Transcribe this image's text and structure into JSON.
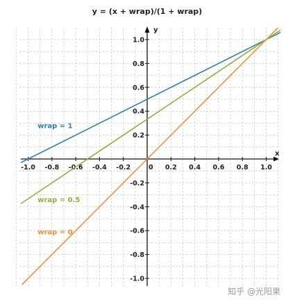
{
  "chart_data": {
    "type": "line",
    "title": "y = (x + wrap)/(1 + wrap)",
    "xlabel": "x",
    "ylabel": "y",
    "xlim": [
      -1.0,
      1.0
    ],
    "ylim": [
      -1.0,
      1.0
    ],
    "grid": true,
    "x_ticks": [
      "-1.0",
      "-0.8",
      "-0.6",
      "-0.4",
      "-0.2",
      "0",
      "0.2",
      "0.4",
      "0.6",
      "0.8",
      "1.0"
    ],
    "y_ticks": [
      "1.0",
      "0.8",
      "0.6",
      "0.4",
      "0.2",
      "-0.2",
      "-0.4",
      "-0.6",
      "-0.8",
      "-1.0"
    ],
    "series": [
      {
        "name": "wrap = 1",
        "wrap": 1,
        "color": "#2f7fb0"
      },
      {
        "name": "wrap = 0.5",
        "wrap": 0.5,
        "color": "#8fb03c"
      },
      {
        "name": "wrap = 0",
        "wrap": 0,
        "color": "#f0913a"
      }
    ]
  },
  "watermark": "知乎 @光阳果"
}
